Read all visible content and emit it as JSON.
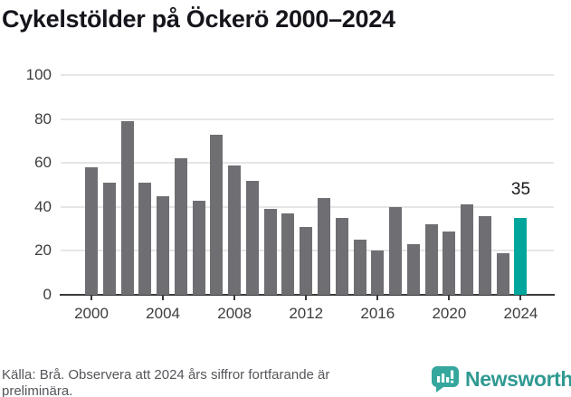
{
  "title": "Cykelstölder på Öckerö 2000–2024",
  "chart_data": {
    "type": "bar",
    "title": "Cykelstölder på Öckerö 2000–2024",
    "categories": [
      2000,
      2001,
      2002,
      2003,
      2004,
      2005,
      2006,
      2007,
      2008,
      2009,
      2010,
      2011,
      2012,
      2013,
      2014,
      2015,
      2016,
      2017,
      2018,
      2019,
      2020,
      2021,
      2022,
      2023,
      2024
    ],
    "values": [
      58,
      51,
      79,
      51,
      45,
      62,
      43,
      73,
      59,
      52,
      39,
      37,
      31,
      44,
      35,
      25,
      20,
      40,
      23,
      32,
      29,
      41,
      36,
      19,
      35
    ],
    "xlabel": "",
    "ylabel": "",
    "ylim": [
      0,
      100
    ],
    "yticks": [
      0,
      20,
      40,
      60,
      80,
      100
    ],
    "xticks": [
      2000,
      2004,
      2008,
      2012,
      2016,
      2020,
      2024
    ],
    "grid": true,
    "legend": false,
    "highlight_category": 2024,
    "highlight_value_label": "35",
    "bar_color": "#6e6e73",
    "highlight_color": "#00a69c"
  },
  "footer": {
    "source_text": "Källa: Brå. Observera att 2024 års siffror fortfarande är preliminära.",
    "brand_name": "Newsworthy"
  },
  "colors": {
    "bar": "#6e6e73",
    "accent_teal": "#00a69c",
    "gridline": "#e6e6e6",
    "axis": "#3a3a3a",
    "title_text": "#15151c",
    "tick_text": "#3d3d3d",
    "footer_text": "#55565b",
    "logo_teal": "#35a79d",
    "wordmark_teal": "#2f9a92"
  }
}
